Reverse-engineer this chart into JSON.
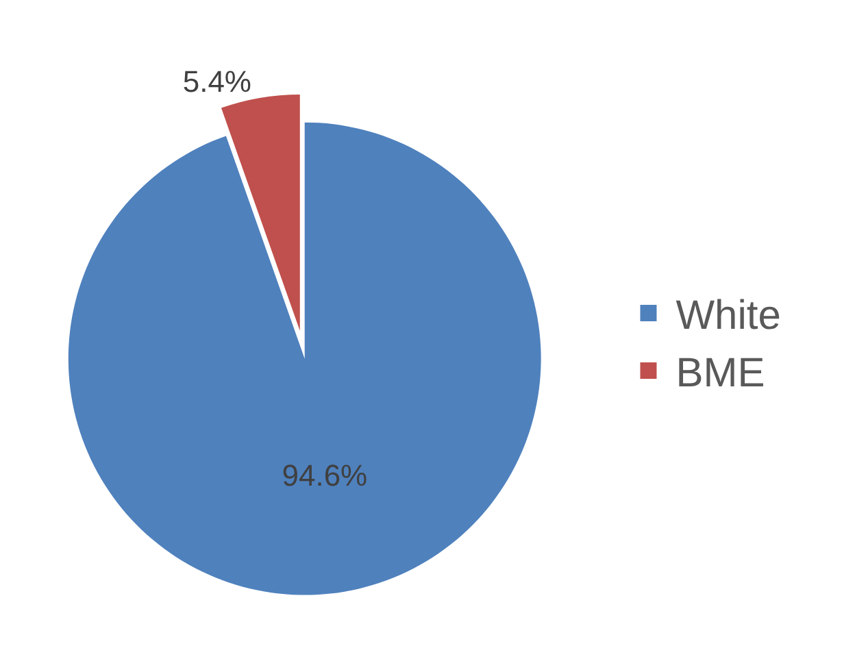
{
  "chart_data": {
    "type": "pie",
    "categories": [
      "White",
      "BME"
    ],
    "values": [
      94.6,
      5.4
    ],
    "colors": [
      "#4f81bd",
      "#c0504d"
    ],
    "value_labels": [
      "94.6%",
      "5.4%"
    ],
    "legend": "right"
  }
}
